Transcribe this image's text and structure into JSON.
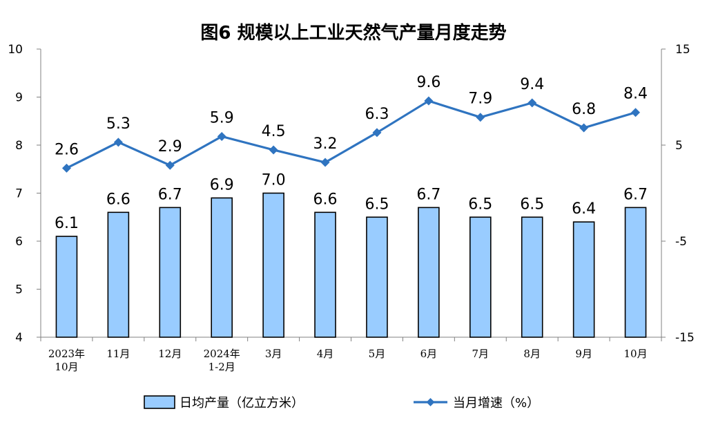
{
  "chart_data": {
    "type": "bar+line",
    "title": "图6  规模以上工业天然气产量月度走势",
    "categories": [
      [
        "2023年",
        "10月"
      ],
      [
        "11月"
      ],
      [
        "12月"
      ],
      [
        "2024年",
        "1-2月"
      ],
      [
        "3月"
      ],
      [
        "4月"
      ],
      [
        "5月"
      ],
      [
        "6月"
      ],
      [
        "7月"
      ],
      [
        "8月"
      ],
      [
        "9月"
      ],
      [
        "10月"
      ]
    ],
    "series": [
      {
        "name": "日均产量（亿立方米）",
        "type": "bar",
        "axis": "left",
        "color": "#99ccff",
        "values": [
          6.1,
          6.6,
          6.7,
          6.9,
          7.0,
          6.6,
          6.5,
          6.7,
          6.5,
          6.5,
          6.4,
          6.7
        ],
        "labels": [
          "6.1",
          "6.6",
          "6.7",
          "6.9",
          "7.0",
          "6.6",
          "6.5",
          "6.7",
          "6.5",
          "6.5",
          "6.4",
          "6.7"
        ]
      },
      {
        "name": "当月增速（%）",
        "type": "line",
        "axis": "right",
        "color": "#2f74c0",
        "values": [
          2.6,
          5.3,
          2.9,
          5.9,
          4.5,
          3.2,
          6.3,
          9.6,
          7.9,
          9.4,
          6.8,
          8.4
        ],
        "labels": [
          "2.6",
          "5.3",
          "2.9",
          "5.9",
          "4.5",
          "3.2",
          "6.3",
          "9.6",
          "7.9",
          "9.4",
          "6.8",
          "8.4"
        ]
      }
    ],
    "y_left": {
      "min": 4,
      "max": 10,
      "ticks": [
        "4",
        "5",
        "6",
        "7",
        "8",
        "9",
        "10"
      ]
    },
    "y_right": {
      "min": -15,
      "max": 15,
      "ticks": [
        "-15",
        "-5",
        "5",
        "15"
      ]
    },
    "grid": false,
    "legend": "bottom"
  }
}
